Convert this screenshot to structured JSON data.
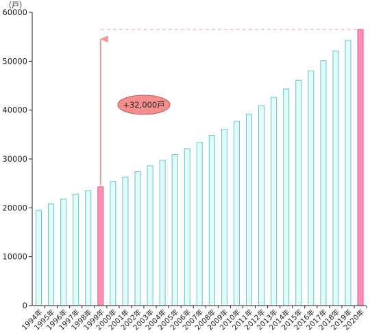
{
  "chart_data": {
    "type": "bar",
    "title": "",
    "xlabel": "",
    "ylabel": "",
    "unit_label": "（戸）",
    "ylim": [
      0,
      60000
    ],
    "yticks": [
      "0",
      "10000",
      "20000",
      "30000",
      "40000",
      "50000",
      "60000"
    ],
    "categories": [
      "1994年",
      "1995年",
      "1996年",
      "1997年",
      "1998年",
      "1999年",
      "2000年",
      "2001年",
      "2002年",
      "2003年",
      "2004年",
      "2005年",
      "2006年",
      "2007年",
      "2008年",
      "2009年",
      "2010年",
      "2011年",
      "2012年",
      "2013年",
      "2014年",
      "2015年",
      "2016年",
      "2017年",
      "2018年",
      "2019年",
      "2020年"
    ],
    "values": [
      19500,
      20800,
      21800,
      22800,
      23500,
      24300,
      25400,
      26300,
      27400,
      28600,
      29700,
      30900,
      32100,
      33400,
      34800,
      36100,
      37700,
      39200,
      40900,
      42600,
      44300,
      46100,
      48000,
      50100,
      52100,
      54300,
      56500
    ],
    "highlight_categories": [
      "1999年",
      "2020年"
    ],
    "colors": {
      "bar_fill": "#e3fcfb",
      "bar_stroke": "#5cc8c8",
      "highlight_fill": "#ff8fb8",
      "highlight_stroke": "#e05a90",
      "arrow": "#f59a9a",
      "callout_fill": "#f58f8f",
      "callout_stroke": "#d24c4c"
    },
    "annotation": {
      "text": "+32,000戸",
      "from_category": "1999年",
      "to_category": "2020年"
    },
    "grid": false
  }
}
